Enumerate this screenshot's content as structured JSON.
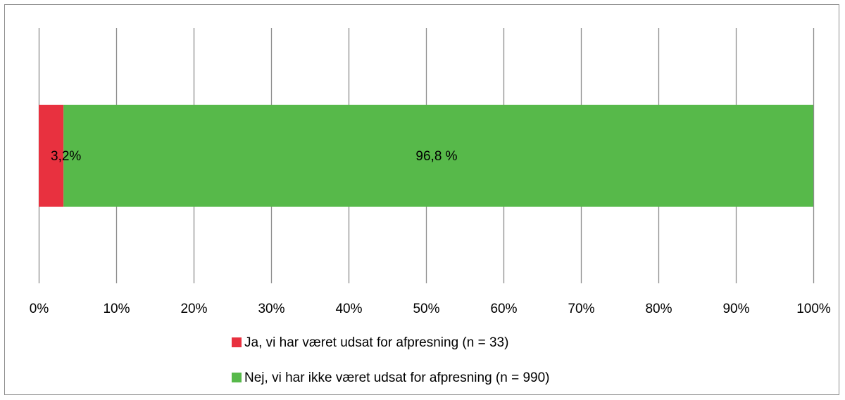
{
  "chart_data": {
    "type": "bar",
    "orientation": "horizontal",
    "stacked": true,
    "percent_stacked": true,
    "categories": [
      ""
    ],
    "series": [
      {
        "name": "Ja, vi har været udsat for afpresning (n = 33)",
        "values": [
          3.2
        ],
        "color": "#e8313f",
        "data_label": "3,2%"
      },
      {
        "name": "Nej, vi har ikke været udsat for afpresning (n = 990)",
        "values": [
          96.8
        ],
        "color": "#57b94a",
        "data_label": "96,8 %"
      }
    ],
    "xlim": [
      0,
      100
    ],
    "xticks": [
      0,
      10,
      20,
      30,
      40,
      50,
      60,
      70,
      80,
      90,
      100
    ],
    "xtick_labels": [
      "0%",
      "10%",
      "20%",
      "30%",
      "40%",
      "50%",
      "60%",
      "70%",
      "80%",
      "90%",
      "100%"
    ],
    "title": "",
    "xlabel": "",
    "ylabel": "",
    "grid": true,
    "legend": "bottom"
  }
}
